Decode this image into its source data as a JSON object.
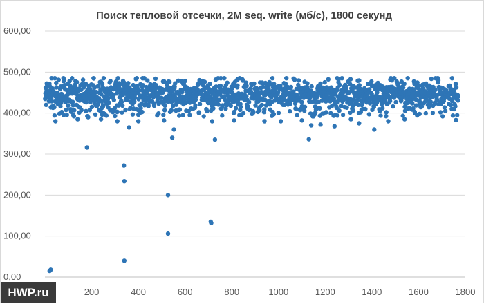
{
  "chart_data": {
    "type": "scatter",
    "title": "Поиск тепловой отсечки, 2M seq. write (мб/с), 1800 секунд",
    "xlabel": "",
    "ylabel": "",
    "xlim": [
      0,
      1800
    ],
    "ylim": [
      0,
      600
    ],
    "x_ticks": [
      "200",
      "400",
      "600",
      "800",
      "1000",
      "1200",
      "1400",
      "1600",
      "1800"
    ],
    "y_ticks": [
      "0,00",
      "100,00",
      "200,00",
      "300,00",
      "400,00",
      "500,00",
      "600,00"
    ],
    "grid": true,
    "legend": "none",
    "marker_color": "#2e75b6",
    "series": [
      {
        "band": {
          "x_start": 1,
          "x_end": 1770,
          "typical_range": [
            410,
            480
          ],
          "center": 445
        },
        "outliers": [
          {
            "x": 5,
            "y": 420
          },
          {
            "x": 20,
            "y": 15
          },
          {
            "x": 25,
            "y": 18
          },
          {
            "x": 45,
            "y": 380
          },
          {
            "x": 80,
            "y": 395
          },
          {
            "x": 140,
            "y": 385
          },
          {
            "x": 180,
            "y": 316
          },
          {
            "x": 185,
            "y": 390
          },
          {
            "x": 240,
            "y": 385
          },
          {
            "x": 310,
            "y": 380
          },
          {
            "x": 338,
            "y": 272
          },
          {
            "x": 340,
            "y": 234
          },
          {
            "x": 340,
            "y": 40
          },
          {
            "x": 360,
            "y": 365
          },
          {
            "x": 400,
            "y": 380
          },
          {
            "x": 510,
            "y": 382
          },
          {
            "x": 527,
            "y": 200
          },
          {
            "x": 527,
            "y": 106
          },
          {
            "x": 545,
            "y": 340
          },
          {
            "x": 552,
            "y": 360
          },
          {
            "x": 620,
            "y": 395
          },
          {
            "x": 680,
            "y": 392
          },
          {
            "x": 710,
            "y": 135
          },
          {
            "x": 712,
            "y": 132
          },
          {
            "x": 716,
            "y": 380
          },
          {
            "x": 728,
            "y": 335
          },
          {
            "x": 810,
            "y": 382
          },
          {
            "x": 940,
            "y": 380
          },
          {
            "x": 1010,
            "y": 380
          },
          {
            "x": 1100,
            "y": 382
          },
          {
            "x": 1130,
            "y": 336
          },
          {
            "x": 1140,
            "y": 370
          },
          {
            "x": 1180,
            "y": 372
          },
          {
            "x": 1240,
            "y": 368
          },
          {
            "x": 1310,
            "y": 385
          },
          {
            "x": 1345,
            "y": 375
          },
          {
            "x": 1410,
            "y": 360
          },
          {
            "x": 1470,
            "y": 380
          },
          {
            "x": 1540,
            "y": 385
          },
          {
            "x": 1760,
            "y": 383
          }
        ]
      }
    ]
  },
  "watermark": {
    "text": "HWP.ru"
  }
}
